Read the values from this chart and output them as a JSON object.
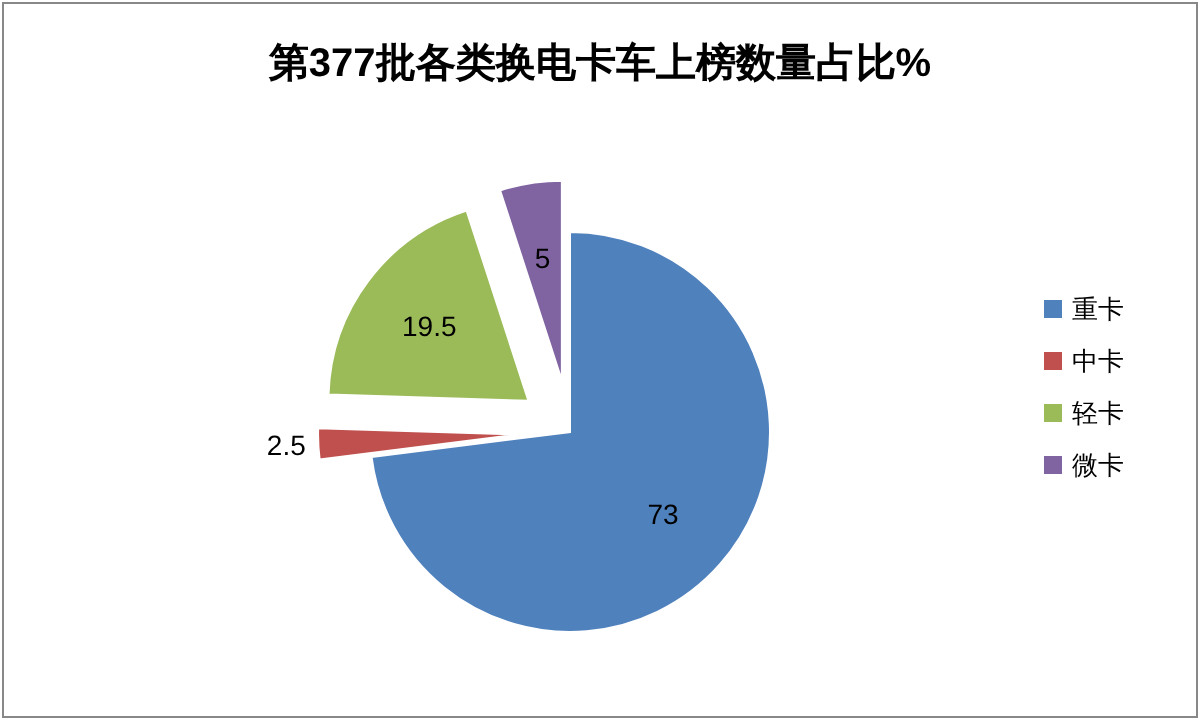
{
  "chart_data": {
    "type": "pie",
    "title": "第377批各类换电卡车上榜数量占比%",
    "categories": [
      "重卡",
      "中卡",
      "轻卡",
      "微卡"
    ],
    "values": [
      73,
      2.5,
      19.5,
      5
    ],
    "colors": [
      "#4f81bd",
      "#c0504d",
      "#9bbb59",
      "#8064a2"
    ],
    "data_labels": true,
    "legend": "right"
  }
}
